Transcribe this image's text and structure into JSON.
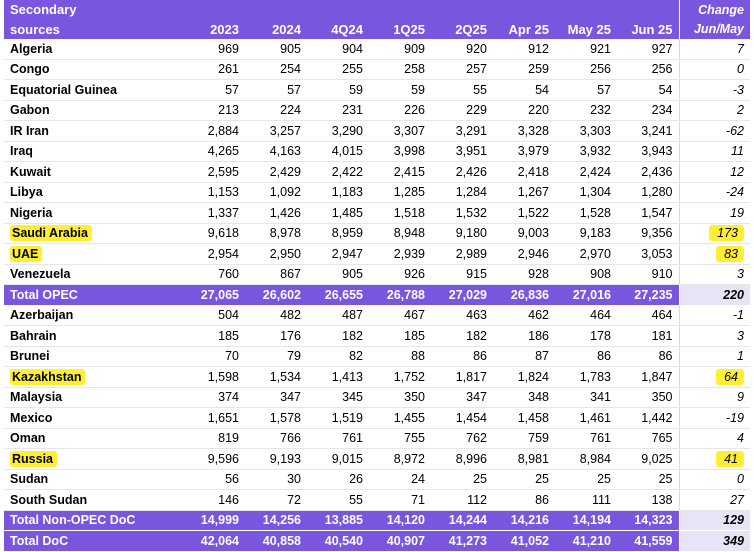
{
  "header": {
    "title_line1": "Secondary",
    "title_line2": "sources",
    "change_line1": "Change",
    "columns": [
      "2023",
      "2024",
      "4Q24",
      "1Q25",
      "2Q25",
      "Apr 25",
      "May 25",
      "Jun 25",
      "Jun/May"
    ]
  },
  "highlight_color": "#ffee33",
  "rows": [
    {
      "name": "Algeria",
      "vals": [
        "969",
        "905",
        "904",
        "909",
        "920",
        "912",
        "921",
        "927"
      ],
      "chg": "7",
      "hl": false
    },
    {
      "name": "Congo",
      "vals": [
        "261",
        "254",
        "255",
        "258",
        "257",
        "259",
        "256",
        "256"
      ],
      "chg": "0",
      "hl": false
    },
    {
      "name": "Equatorial Guinea",
      "vals": [
        "57",
        "57",
        "59",
        "59",
        "55",
        "54",
        "57",
        "54"
      ],
      "chg": "-3",
      "hl": false
    },
    {
      "name": "Gabon",
      "vals": [
        "213",
        "224",
        "231",
        "226",
        "229",
        "220",
        "232",
        "234"
      ],
      "chg": "2",
      "hl": false
    },
    {
      "name": "IR Iran",
      "vals": [
        "2,884",
        "3,257",
        "3,290",
        "3,307",
        "3,291",
        "3,328",
        "3,303",
        "3,241"
      ],
      "chg": "-62",
      "hl": false
    },
    {
      "name": "Iraq",
      "vals": [
        "4,265",
        "4,163",
        "4,015",
        "3,998",
        "3,951",
        "3,979",
        "3,932",
        "3,943"
      ],
      "chg": "11",
      "hl": false
    },
    {
      "name": "Kuwait",
      "vals": [
        "2,595",
        "2,429",
        "2,422",
        "2,415",
        "2,426",
        "2,418",
        "2,424",
        "2,436"
      ],
      "chg": "12",
      "hl": false
    },
    {
      "name": "Libya",
      "vals": [
        "1,153",
        "1,092",
        "1,183",
        "1,285",
        "1,284",
        "1,267",
        "1,304",
        "1,280"
      ],
      "chg": "-24",
      "hl": false
    },
    {
      "name": "Nigeria",
      "vals": [
        "1,337",
        "1,426",
        "1,485",
        "1,518",
        "1,532",
        "1,522",
        "1,528",
        "1,547"
      ],
      "chg": "19",
      "hl": false
    },
    {
      "name": "Saudi Arabia",
      "vals": [
        "9,618",
        "8,978",
        "8,959",
        "8,948",
        "9,180",
        "9,003",
        "9,183",
        "9,356"
      ],
      "chg": "173",
      "hl": true
    },
    {
      "name": "UAE",
      "vals": [
        "2,954",
        "2,950",
        "2,947",
        "2,939",
        "2,989",
        "2,946",
        "2,970",
        "3,053"
      ],
      "chg": "83",
      "hl": true
    },
    {
      "name": "Venezuela",
      "vals": [
        "760",
        "867",
        "905",
        "926",
        "915",
        "928",
        "908",
        "910"
      ],
      "chg": "3",
      "hl": false
    },
    {
      "name": "Total  OPEC",
      "vals": [
        "27,065",
        "26,602",
        "26,655",
        "26,788",
        "27,029",
        "26,836",
        "27,016",
        "27,235"
      ],
      "chg": "220",
      "hl": false,
      "total": true
    },
    {
      "name": "Azerbaijan",
      "vals": [
        "504",
        "482",
        "487",
        "467",
        "463",
        "462",
        "464",
        "464"
      ],
      "chg": "-1",
      "hl": false
    },
    {
      "name": "Bahrain",
      "vals": [
        "185",
        "176",
        "182",
        "185",
        "182",
        "186",
        "178",
        "181"
      ],
      "chg": "3",
      "hl": false
    },
    {
      "name": "Brunei",
      "vals": [
        "70",
        "79",
        "82",
        "88",
        "86",
        "87",
        "86",
        "86"
      ],
      "chg": "1",
      "hl": false
    },
    {
      "name": "Kazakhstan",
      "vals": [
        "1,598",
        "1,534",
        "1,413",
        "1,752",
        "1,817",
        "1,824",
        "1,783",
        "1,847"
      ],
      "chg": "64",
      "hl": true
    },
    {
      "name": "Malaysia",
      "vals": [
        "374",
        "347",
        "345",
        "350",
        "347",
        "348",
        "341",
        "350"
      ],
      "chg": "9",
      "hl": false
    },
    {
      "name": "Mexico",
      "vals": [
        "1,651",
        "1,578",
        "1,519",
        "1,455",
        "1,454",
        "1,458",
        "1,461",
        "1,442"
      ],
      "chg": "-19",
      "hl": false
    },
    {
      "name": "Oman",
      "vals": [
        "819",
        "766",
        "761",
        "755",
        "762",
        "759",
        "761",
        "765"
      ],
      "chg": "4",
      "hl": false
    },
    {
      "name": "Russia",
      "vals": [
        "9,596",
        "9,193",
        "9,015",
        "8,972",
        "8,996",
        "8,981",
        "8,984",
        "9,025"
      ],
      "chg": "41",
      "hl": true
    },
    {
      "name": "Sudan",
      "vals": [
        "56",
        "30",
        "26",
        "24",
        "25",
        "25",
        "25",
        "25"
      ],
      "chg": "0",
      "hl": false
    },
    {
      "name": "South Sudan",
      "vals": [
        "146",
        "72",
        "55",
        "71",
        "112",
        "86",
        "111",
        "138"
      ],
      "chg": "27",
      "hl": false
    },
    {
      "name": "Total Non-OPEC DoC",
      "vals": [
        "14,999",
        "14,256",
        "13,885",
        "14,120",
        "14,244",
        "14,216",
        "14,194",
        "14,323"
      ],
      "chg": "129",
      "hl": false,
      "total": true
    },
    {
      "name": "Total DoC",
      "vals": [
        "42,064",
        "40,858",
        "40,540",
        "40,907",
        "41,273",
        "41,052",
        "41,210",
        "41,559"
      ],
      "chg": "349",
      "hl": false,
      "total": true,
      "grand": true
    }
  ]
}
